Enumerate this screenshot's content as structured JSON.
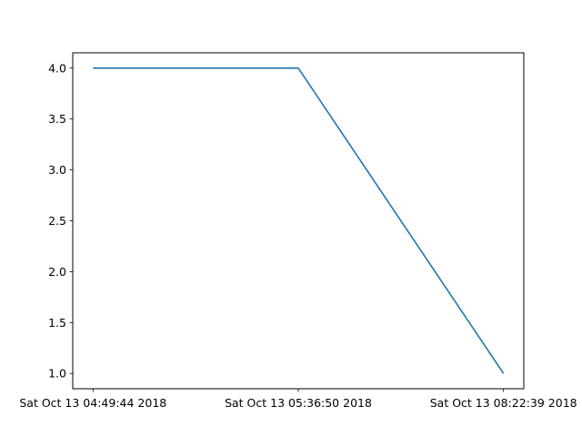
{
  "chart_data": {
    "type": "line",
    "x_categories": [
      "Sat Oct 13 04:49:44 2018",
      "Sat Oct 13 05:36:50 2018",
      "Sat Oct 13 08:22:39 2018"
    ],
    "series": [
      {
        "values": [
          4.0,
          4.0,
          1.0
        ]
      }
    ],
    "yticks": [
      "1.0",
      "1.5",
      "2.0",
      "2.5",
      "3.0",
      "3.5",
      "4.0"
    ],
    "ylim": [
      0.85,
      4.15
    ],
    "grid": false,
    "colors": {
      "line": "#1f77b4"
    }
  }
}
